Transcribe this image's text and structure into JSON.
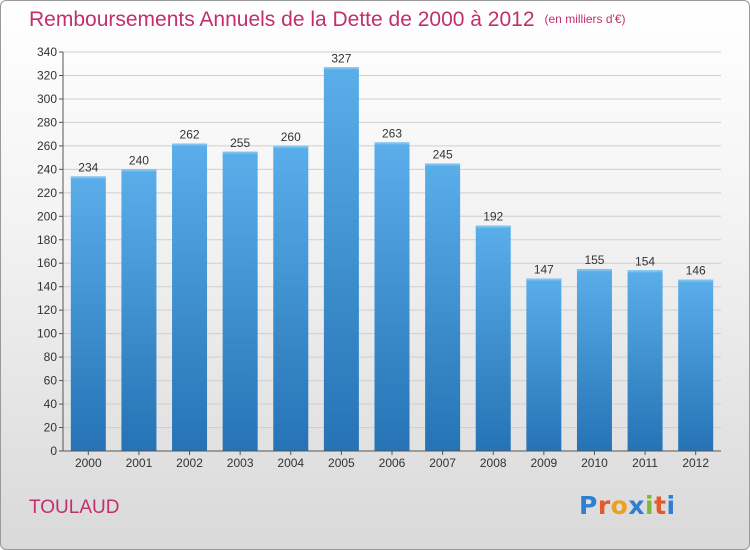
{
  "title": "Remboursements Annuels de la Dette de 2000 à 2012",
  "unit_note": "(en milliers d'€)",
  "commune": "TOULAUD",
  "logo_text": "Proxiti",
  "colors": {
    "title": "#c1306b",
    "bar_top": "#5aaeea",
    "bar_bottom": "#2573b5"
  },
  "chart_data": {
    "type": "bar",
    "title": "Remboursements Annuels de la Dette de 2000 à 2012",
    "xlabel": "",
    "ylabel": "",
    "categories": [
      "2000",
      "2001",
      "2002",
      "2003",
      "2004",
      "2005",
      "2006",
      "2007",
      "2008",
      "2009",
      "2010",
      "2011",
      "2012"
    ],
    "values": [
      234,
      240,
      262,
      255,
      260,
      327,
      263,
      245,
      192,
      147,
      155,
      154,
      146
    ],
    "ylim": [
      0,
      340
    ],
    "yticks": [
      0,
      20,
      40,
      60,
      80,
      100,
      120,
      140,
      160,
      180,
      200,
      220,
      240,
      260,
      280,
      300,
      320,
      340
    ],
    "grid": true,
    "legend": "none"
  }
}
